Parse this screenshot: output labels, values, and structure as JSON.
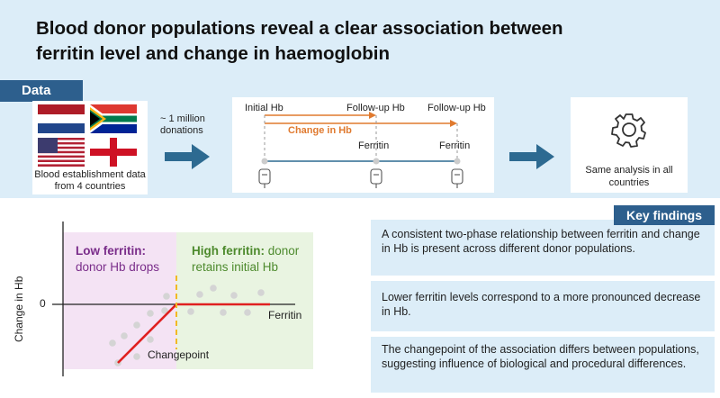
{
  "title": "Blood donor populations reveal a clear association between ferritin level and change in haemoglobin",
  "data_section": {
    "tag": "Data",
    "flags": [
      "Netherlands",
      "South Africa",
      "United States",
      "England"
    ],
    "caption": "Blood establishment data from 4 countries",
    "donations": "~ 1 million donations"
  },
  "timeline": {
    "initial_hb": "Initial Hb",
    "followup_hb_1": "Follow-up Hb",
    "followup_hb_2": "Follow-up Hb",
    "change_hb": "Change in Hb",
    "ferritin_1": "Ferritin",
    "ferritin_2": "Ferritin"
  },
  "analysis": {
    "text": "Same analysis in all countries",
    "icon": "gear-icon"
  },
  "plot": {
    "low_title": "Low ferritin:",
    "low_rest": "donor Hb drops",
    "high_title": "High ferritin:",
    "high_rest_1": "donor",
    "high_rest_2": "retains initial Hb",
    "ylabel": "Change in Hb",
    "y_zero": "0",
    "xlabel": "Ferritin",
    "changepoint": "Changepoint"
  },
  "key_findings": {
    "tag": "Key findings",
    "items": [
      "A consistent two-phase relationship between ferritin and change in Hb is present across different donor populations.",
      "Lower ferritin levels correspond to a more pronounced decrease in Hb.",
      "The changepoint of the association differs between populations, suggesting influence of biological and procedural differences."
    ]
  },
  "colors": {
    "accent_blue": "#2d5f8d",
    "band_blue": "#dcedf8",
    "orange": "#e07a2f",
    "low_purple": "#7a2d8a",
    "high_green": "#4d8a2d",
    "fit_red": "#e02020"
  }
}
